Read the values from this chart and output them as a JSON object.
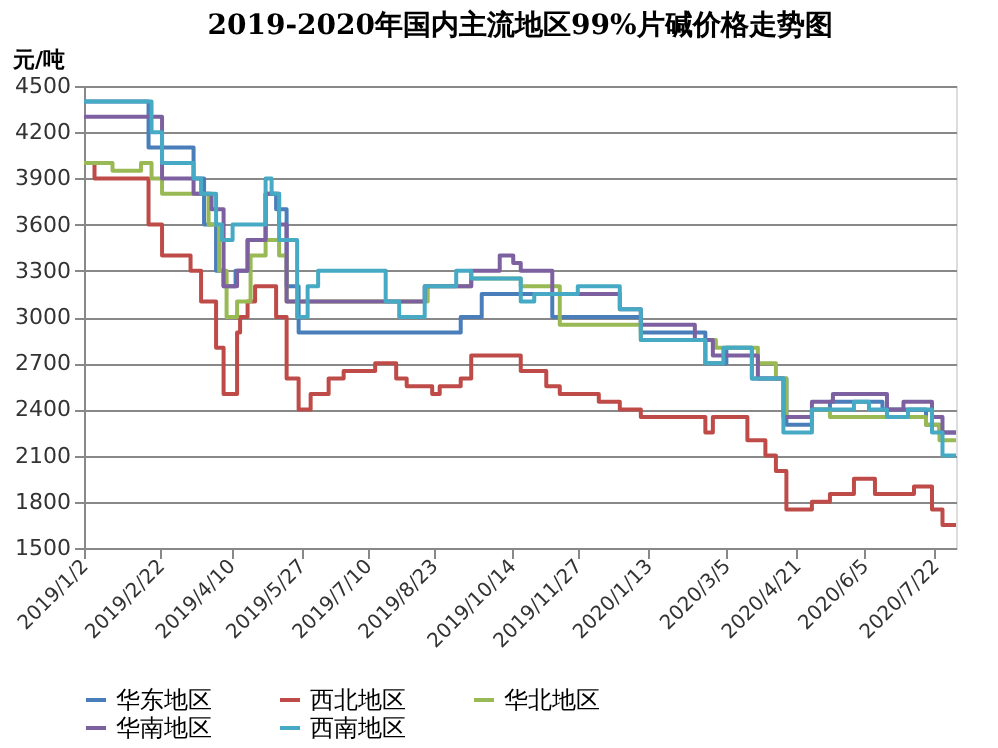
{
  "chart_data": {
    "type": "step",
    "title": "2019-2020年国内主流地区99%片碱价格走势图",
    "ylabel": "元/吨",
    "xlim": [
      "2019-01-02",
      "2020-08-05"
    ],
    "xticks": [
      {
        "value": "2019-01-02",
        "label": "2019/1/2"
      },
      {
        "value": "2019-02-22",
        "label": "2019/2/22"
      },
      {
        "value": "2019-04-10",
        "label": "2019/4/10"
      },
      {
        "value": "2019-05-27",
        "label": "2019/5/27"
      },
      {
        "value": "2019-07-10",
        "label": "2019/7/10"
      },
      {
        "value": "2019-08-23",
        "label": "2019/8/23"
      },
      {
        "value": "2019-10-14",
        "label": "2019/10/14"
      },
      {
        "value": "2019-11-27",
        "label": "2019/11/27"
      },
      {
        "value": "2020-01-13",
        "label": "2020/1/13"
      },
      {
        "value": "2020-03-05",
        "label": "2020/3/5"
      },
      {
        "value": "2020-04-21",
        "label": "2020/4/21"
      },
      {
        "value": "2020-06-05",
        "label": "2020/6/5"
      },
      {
        "value": "2020-07-22",
        "label": "2020/7/22"
      }
    ],
    "ylim": [
      1500,
      4500
    ],
    "yticks": [
      1500,
      1800,
      2100,
      2400,
      2700,
      3000,
      3300,
      3600,
      3900,
      4200,
      4500
    ],
    "grid": "y",
    "legend": "bottom",
    "line_style": "solid",
    "marker": "none",
    "series": [
      {
        "name": "华东地区",
        "color": "#4a7ebb",
        "x": [
          "2019-01-02",
          "2019-02-14",
          "2019-03-16",
          "2019-03-23",
          "2019-03-31",
          "2019-04-05",
          "2019-04-13",
          "2019-04-21",
          "2019-05-03",
          "2019-05-10",
          "2019-05-17",
          "2019-05-25",
          "2019-09-10",
          "2019-09-24",
          "2019-11-10",
          "2020-01-08",
          "2020-02-20",
          "2020-03-05",
          "2020-03-22",
          "2020-04-14",
          "2020-05-01",
          "2020-05-13",
          "2020-06-17",
          "2020-07-16",
          "2020-07-25",
          "2020-08-05"
        ],
        "values": [
          4400,
          4100,
          3900,
          3600,
          3300,
          3200,
          3300,
          3500,
          3800,
          3700,
          3200,
          2900,
          3000,
          3150,
          3000,
          2900,
          2700,
          2800,
          2600,
          2300,
          2400,
          2450,
          2400,
          2300,
          2250,
          2250
        ]
      },
      {
        "name": "西北地区",
        "color": "#be4b48",
        "x": [
          "2019-01-02",
          "2019-01-09",
          "2019-02-14",
          "2019-02-23",
          "2019-03-14",
          "2019-03-21",
          "2019-03-31",
          "2019-04-05",
          "2019-04-14",
          "2019-04-16",
          "2019-04-21",
          "2019-04-26",
          "2019-05-10",
          "2019-05-17",
          "2019-05-25",
          "2019-06-02",
          "2019-06-14",
          "2019-06-24",
          "2019-07-15",
          "2019-07-29",
          "2019-08-05",
          "2019-08-22",
          "2019-08-27",
          "2019-09-10",
          "2019-09-17",
          "2019-10-20",
          "2019-11-06",
          "2019-11-15",
          "2019-12-11",
          "2019-12-25",
          "2020-01-08",
          "2020-02-20",
          "2020-02-25",
          "2020-03-19",
          "2020-03-31",
          "2020-04-07",
          "2020-04-14",
          "2020-05-01",
          "2020-05-13",
          "2020-05-29",
          "2020-06-12",
          "2020-07-08",
          "2020-07-20",
          "2020-07-27",
          "2020-08-05"
        ],
        "values": [
          4000,
          3900,
          3600,
          3400,
          3300,
          3100,
          2800,
          2500,
          2900,
          3000,
          3100,
          3200,
          3000,
          2600,
          2400,
          2500,
          2600,
          2650,
          2700,
          2600,
          2550,
          2500,
          2550,
          2600,
          2750,
          2650,
          2550,
          2500,
          2450,
          2400,
          2350,
          2250,
          2350,
          2200,
          2100,
          2000,
          1750,
          1800,
          1850,
          1950,
          1850,
          1900,
          1750,
          1650,
          1650
        ]
      },
      {
        "name": "华北地区",
        "color": "#98b954",
        "x": [
          "2019-01-02",
          "2019-01-21",
          "2019-02-09",
          "2019-02-16",
          "2019-02-23",
          "2019-03-26",
          "2019-04-02",
          "2019-04-07",
          "2019-04-14",
          "2019-04-23",
          "2019-05-03",
          "2019-05-12",
          "2019-05-17",
          "2019-08-19",
          "2019-09-17",
          "2019-10-20",
          "2019-11-15",
          "2020-01-08",
          "2020-02-27",
          "2020-03-26",
          "2020-04-07",
          "2020-04-14",
          "2020-05-01",
          "2020-05-13",
          "2020-07-16",
          "2020-07-25",
          "2020-08-05"
        ],
        "values": [
          4000,
          3950,
          4000,
          3900,
          3800,
          3600,
          3300,
          3000,
          3100,
          3400,
          3500,
          3400,
          3100,
          3200,
          3250,
          3200,
          2950,
          2850,
          2800,
          2700,
          2600,
          2350,
          2400,
          2350,
          2300,
          2200,
          2200
        ]
      },
      {
        "name": "华南地区",
        "color": "#7d60a0",
        "x": [
          "2019-01-02",
          "2019-02-23",
          "2019-03-16",
          "2019-03-28",
          "2019-04-05",
          "2019-04-14",
          "2019-04-21",
          "2019-05-03",
          "2019-05-12",
          "2019-05-17",
          "2019-08-17",
          "2019-09-17",
          "2019-10-06",
          "2019-10-15",
          "2019-10-20",
          "2019-11-10",
          "2019-12-25",
          "2020-01-08",
          "2020-02-13",
          "2020-02-25",
          "2020-03-26",
          "2020-04-12",
          "2020-05-01",
          "2020-05-15",
          "2020-06-20",
          "2020-07-01",
          "2020-07-20",
          "2020-07-27",
          "2020-08-05"
        ],
        "values": [
          4300,
          3900,
          3800,
          3700,
          3200,
          3300,
          3500,
          3800,
          3600,
          3100,
          3200,
          3300,
          3400,
          3350,
          3300,
          3150,
          3050,
          2950,
          2850,
          2750,
          2600,
          2350,
          2450,
          2500,
          2400,
          2450,
          2350,
          2250,
          2250
        ]
      },
      {
        "name": "西南地区",
        "color": "#46aac5",
        "x": [
          "2019-01-02",
          "2019-02-16",
          "2019-02-23",
          "2019-03-16",
          "2019-03-21",
          "2019-03-31",
          "2019-04-04",
          "2019-04-11",
          "2019-05-03",
          "2019-05-07",
          "2019-05-12",
          "2019-05-24",
          "2019-05-31",
          "2019-06-07",
          "2019-07-22",
          "2019-07-31",
          "2019-08-17",
          "2019-09-07",
          "2019-09-17",
          "2019-10-20",
          "2019-10-29",
          "2019-11-27",
          "2019-12-25",
          "2020-01-08",
          "2020-02-20",
          "2020-03-03",
          "2020-03-22",
          "2020-04-12",
          "2020-05-01",
          "2020-05-29",
          "2020-06-08",
          "2020-06-20",
          "2020-07-04",
          "2020-07-20",
          "2020-07-27",
          "2020-08-05"
        ],
        "values": [
          4400,
          4200,
          4000,
          3900,
          3800,
          3600,
          3500,
          3600,
          3900,
          3800,
          3500,
          3000,
          3200,
          3300,
          3100,
          3000,
          3200,
          3300,
          3250,
          3100,
          3150,
          3200,
          3050,
          2850,
          2700,
          2800,
          2600,
          2250,
          2400,
          2450,
          2400,
          2350,
          2400,
          2250,
          2100,
          2100
        ]
      }
    ]
  }
}
